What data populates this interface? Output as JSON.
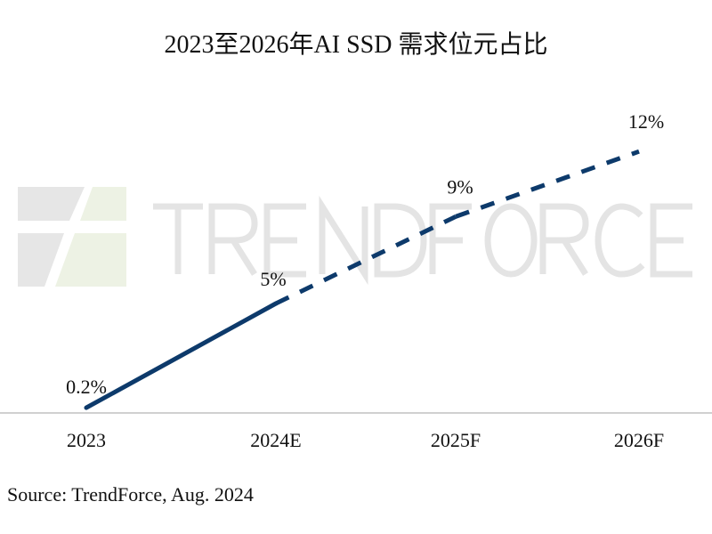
{
  "chart_data": {
    "type": "line",
    "title": "2023至2026年AI SSD 需求位元占比",
    "xlabel": "",
    "ylabel": "",
    "categories": [
      "2023",
      "2024E",
      "2025F",
      "2026F"
    ],
    "series": [
      {
        "values": [
          0.2,
          5,
          9,
          12
        ],
        "data_labels": [
          "0.2%",
          "5%",
          "9%",
          "12%"
        ],
        "color": "#0d3a6b",
        "line_style": [
          "solid",
          "dashed",
          "dashed"
        ]
      }
    ],
    "ylim": [
      0,
      12.5
    ],
    "grid": false,
    "legend": "none",
    "axis_color": "#d0d0d0"
  },
  "watermark": {
    "text": "TRENDFORCE",
    "colors": [
      "#e4e4e4",
      "#eef3e6"
    ]
  },
  "source": "Source: TrendForce, Aug. 2024"
}
